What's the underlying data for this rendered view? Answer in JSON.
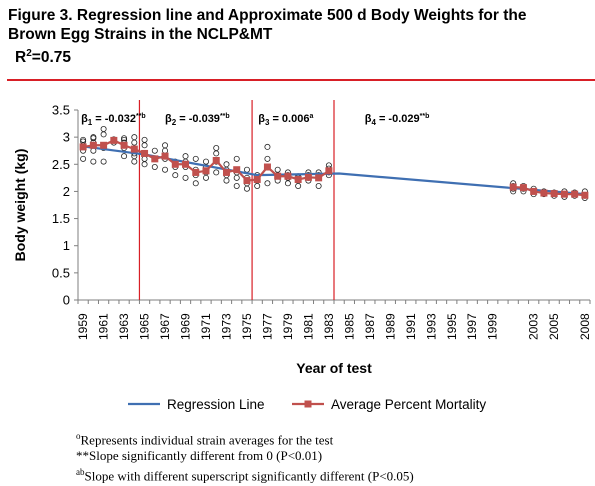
{
  "figure": {
    "title_line1": "Figure 3.  Regression line and Approximate 500 d Body Weights for the",
    "title_line2": "Brown Egg Strains in the NCLP&MT",
    "r2_prefix": "R",
    "r2_sup": "2",
    "r2_value": "=0.75",
    "rule_color": "#d81f26"
  },
  "notes": {
    "line1_sup": "o",
    "line1": "Represents individual strain averages for the test",
    "line2": "**Slope significantly different from 0 (P<0.01)",
    "line3_sup": "ab",
    "line3": "Slope with different superscript significantly different (P<0.05)"
  },
  "chart_data": {
    "type": "line",
    "title": "",
    "xlabel": "Year of test",
    "ylabel": "Body weight (kg)",
    "ylim": [
      0,
      3.5
    ],
    "yticks": [
      "0",
      "0.5",
      "1",
      "1.5",
      "2",
      "2.5",
      "3",
      "3.5"
    ],
    "x_categories": [
      "1959",
      "1960",
      "1961",
      "1962",
      "1963",
      "1964",
      "1965",
      "1966",
      "1967",
      "1968",
      "1969",
      "1970",
      "1971",
      "1972",
      "1973",
      "1974",
      "1975",
      "1976",
      "1977",
      "1978",
      "1979",
      "1980",
      "1981",
      "1982",
      "1983",
      "1984",
      "1985",
      "1986",
      "1987",
      "1988",
      "1989",
      "1990",
      "1991",
      "1992",
      "1993",
      "1994",
      "1995",
      "1996",
      "1997",
      "1998",
      "1999",
      "2000",
      "2001",
      "2002",
      "2003",
      "2004",
      "2005",
      "2006",
      "2007",
      "2008"
    ],
    "xtick_labels": [
      "1959",
      "1961",
      "1963",
      "1965",
      "1967",
      "1969",
      "1971",
      "1973",
      "1975",
      "1977",
      "1979",
      "1981",
      "1983",
      "1985",
      "1987",
      "1989",
      "1991",
      "1993",
      "1995",
      "1997",
      "1999",
      "2003",
      "2005",
      "2008"
    ],
    "xtick_positions": [
      0,
      2,
      4,
      6,
      8,
      10,
      12,
      14,
      16,
      18,
      20,
      22,
      24,
      26,
      28,
      30,
      32,
      34,
      36,
      38,
      40,
      44,
      46,
      49
    ],
    "grid": false,
    "legend_position": "bottom",
    "series": [
      {
        "name": "Regression Line",
        "color": "#3f6fb2",
        "x": [
          0,
          6,
          6,
          17,
          17,
          25,
          25,
          49
        ],
        "y": [
          2.83,
          2.68,
          2.68,
          2.3,
          2.3,
          2.33,
          2.33,
          1.95
        ]
      },
      {
        "name": "Average Percent Mortality",
        "color": "#c0504d",
        "x": [
          0,
          1,
          2,
          3,
          4,
          5,
          6,
          7,
          8,
          9,
          10,
          11,
          12,
          13,
          14,
          15,
          16,
          17,
          18,
          19,
          20,
          21,
          22,
          23,
          24,
          42,
          43,
          44,
          45,
          46,
          47,
          48,
          49
        ],
        "y": [
          2.82,
          2.85,
          2.85,
          2.94,
          2.85,
          2.78,
          2.7,
          2.6,
          2.65,
          2.5,
          2.5,
          2.35,
          2.38,
          2.57,
          2.35,
          2.4,
          2.2,
          2.22,
          2.45,
          2.28,
          2.28,
          2.22,
          2.26,
          2.25,
          2.38,
          2.08,
          2.07,
          2.0,
          1.97,
          1.96,
          1.95,
          1.95,
          1.93
        ]
      }
    ],
    "strain_points": {
      "marker": "open-circle",
      "x": [
        0,
        0,
        0,
        0,
        0,
        1,
        1,
        1,
        1,
        1,
        2,
        2,
        2,
        2,
        3,
        3,
        4,
        4,
        4,
        4,
        4,
        5,
        5,
        5,
        5,
        5,
        6,
        6,
        6,
        6,
        6,
        7,
        7,
        7,
        8,
        8,
        8,
        8,
        9,
        9,
        9,
        10,
        10,
        10,
        10,
        11,
        11,
        11,
        11,
        12,
        12,
        12,
        12,
        13,
        13,
        13,
        13,
        14,
        14,
        14,
        14,
        15,
        15,
        15,
        15,
        16,
        16,
        16,
        16,
        17,
        17,
        17,
        18,
        18,
        18,
        19,
        19,
        19,
        20,
        20,
        20,
        20,
        21,
        21,
        21,
        21,
        22,
        22,
        22,
        22,
        23,
        23,
        23,
        23,
        24,
        24,
        24,
        24,
        42,
        42,
        42,
        42,
        43,
        43,
        43,
        44,
        44,
        44,
        45,
        45,
        45,
        46,
        46,
        46,
        47,
        47,
        47,
        48,
        48,
        48,
        49,
        49,
        49
      ],
      "y": [
        2.6,
        2.75,
        2.85,
        2.92,
        2.95,
        2.55,
        2.75,
        2.9,
        2.98,
        3.0,
        2.55,
        2.8,
        3.05,
        3.15,
        2.9,
        2.96,
        2.65,
        2.8,
        2.9,
        2.95,
        2.98,
        2.55,
        2.65,
        2.7,
        2.9,
        3.0,
        2.5,
        2.6,
        2.7,
        2.85,
        2.95,
        2.45,
        2.6,
        2.75,
        2.4,
        2.6,
        2.75,
        2.85,
        2.3,
        2.45,
        2.55,
        2.25,
        2.45,
        2.55,
        2.65,
        2.15,
        2.3,
        2.4,
        2.6,
        2.25,
        2.35,
        2.45,
        2.55,
        2.35,
        2.55,
        2.7,
        2.8,
        2.2,
        2.3,
        2.4,
        2.5,
        2.1,
        2.25,
        2.35,
        2.6,
        2.05,
        2.15,
        2.25,
        2.4,
        2.1,
        2.2,
        2.3,
        2.15,
        2.6,
        2.82,
        2.2,
        2.3,
        2.4,
        2.15,
        2.25,
        2.3,
        2.35,
        2.1,
        2.2,
        2.25,
        2.28,
        2.2,
        2.25,
        2.3,
        2.35,
        2.1,
        2.25,
        2.3,
        2.35,
        2.3,
        2.35,
        2.42,
        2.48,
        2.0,
        2.05,
        2.1,
        2.15,
        2.0,
        2.05,
        2.1,
        1.95,
        2.0,
        2.05,
        1.95,
        1.98,
        2.0,
        1.92,
        1.95,
        1.98,
        1.9,
        1.95,
        2.0,
        1.92,
        1.95,
        1.98,
        1.88,
        1.92,
        2.0
      ]
    },
    "period_breaks": [
      6,
      17,
      25
    ],
    "break_color": "#d81f26",
    "slope_labels": [
      {
        "prefix": "β",
        "sub": "1",
        "text": " = -0.032",
        "sup": "**b",
        "at_x": 0.3
      },
      {
        "prefix": "β",
        "sub": "2",
        "text": " = -0.039",
        "sup": "**b",
        "at_x": 8.5
      },
      {
        "prefix": "β",
        "sub": "3",
        "text": " = 0.006",
        "sup": "a",
        "at_x": 17.6
      },
      {
        "prefix": "β",
        "sub": "4",
        "text": " = -0.029",
        "sup": "**b",
        "at_x": 28.0
      }
    ]
  }
}
